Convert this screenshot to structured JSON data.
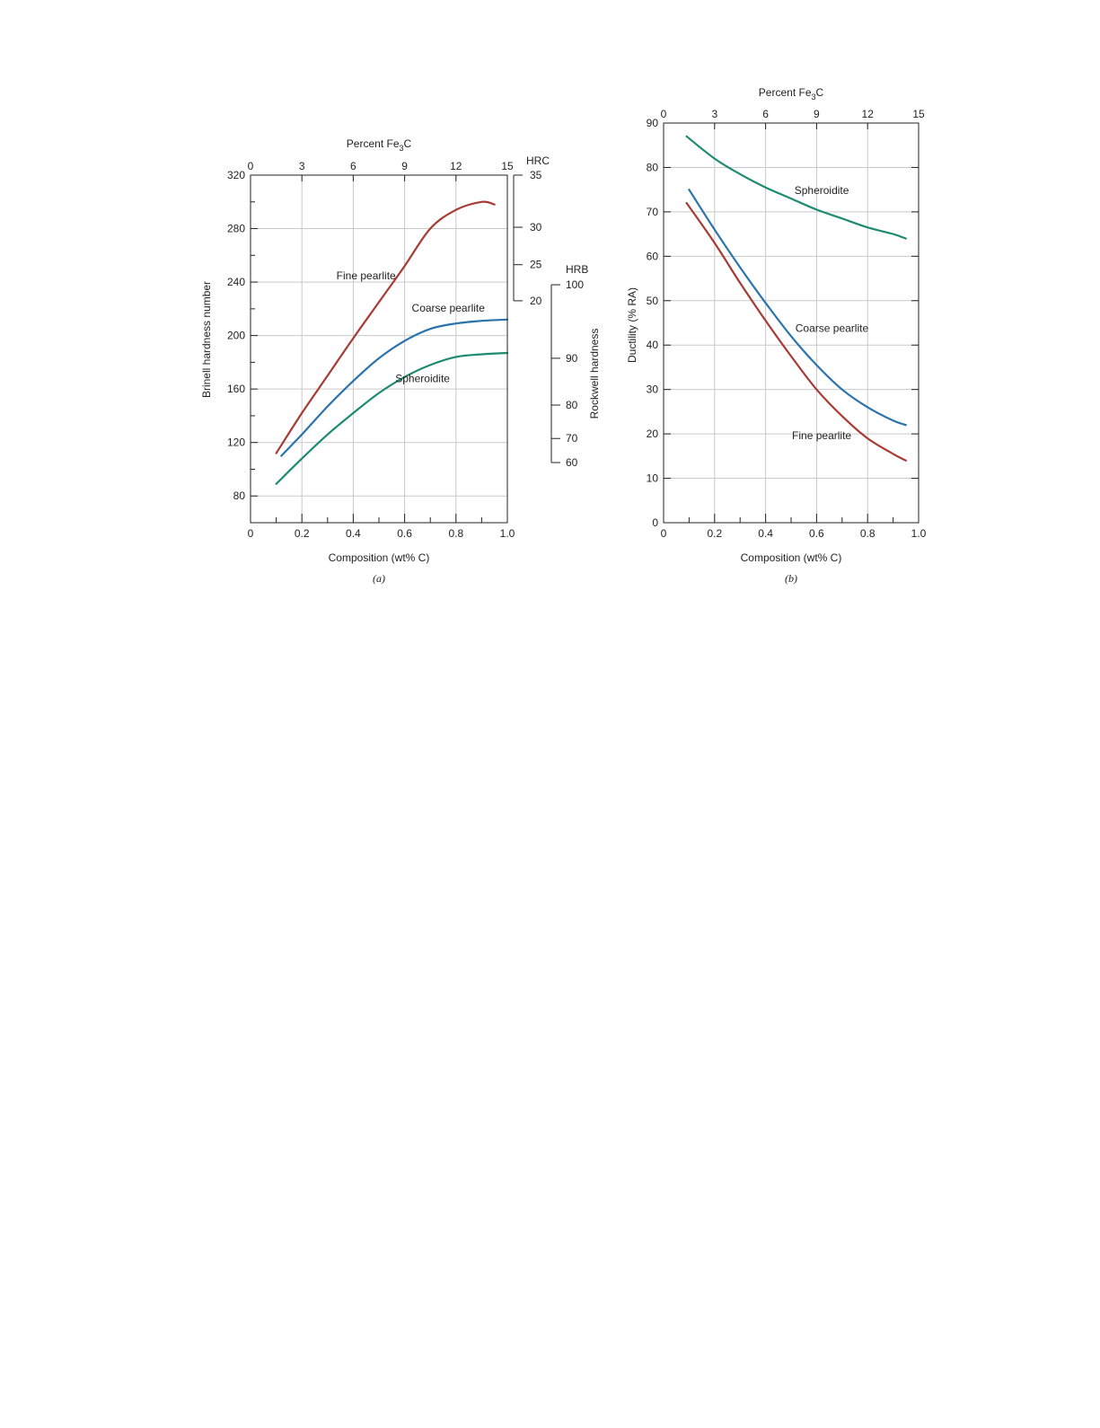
{
  "chart_data": [
    {
      "id": "a",
      "type": "line",
      "caption": "(a)",
      "xlabel": "Composition (wt% C)",
      "ylabel": "Brinell hardness number",
      "top_axis_label": "Percent Fe3C",
      "top_axis_label_parts": {
        "base": "Percent Fe",
        "sub": "3",
        "tail": "C"
      },
      "xlim": [
        0,
        1.0
      ],
      "ylim": [
        60,
        320
      ],
      "x_ticks": [
        "0",
        "0.2",
        "0.4",
        "0.6",
        "0.8",
        "1.0"
      ],
      "y_ticks": [
        "80",
        "120",
        "160",
        "200",
        "240",
        "280",
        "320"
      ],
      "top_ticks": [
        "0",
        "3",
        "6",
        "9",
        "12",
        "15"
      ],
      "hrc_scale": {
        "label": "HRC",
        "ticks": [
          {
            "label": "35",
            "brinell": 320
          },
          {
            "label": "30",
            "brinell": 281
          },
          {
            "label": "25",
            "brinell": 253
          },
          {
            "label": "20",
            "brinell": 226
          }
        ]
      },
      "hrb_scale": {
        "label": "HRB",
        "ticks": [
          {
            "label": "100",
            "brinell": 238
          },
          {
            "label": "90",
            "brinell": 183
          },
          {
            "label": "80",
            "brinell": 148
          },
          {
            "label": "70",
            "brinell": 123
          },
          {
            "label": "60",
            "brinell": 105
          }
        ]
      },
      "right_axis_label": "Rockwell hardness",
      "series": [
        {
          "name": "Fine pearlite",
          "color": "#a83a34",
          "label_pos": [
            0.45,
            242
          ],
          "x": [
            0.1,
            0.2,
            0.3,
            0.4,
            0.5,
            0.6,
            0.7,
            0.8,
            0.9,
            0.95
          ],
          "y": [
            112,
            142,
            170,
            198,
            225,
            252,
            280,
            294,
            300,
            298
          ]
        },
        {
          "name": "Coarse pearlite",
          "color": "#2b73ad",
          "label_pos": [
            0.77,
            218
          ],
          "x": [
            0.12,
            0.2,
            0.3,
            0.4,
            0.5,
            0.6,
            0.7,
            0.8,
            0.9,
            1.0
          ],
          "y": [
            110,
            126,
            147,
            166,
            183,
            196,
            205,
            209,
            211,
            212
          ]
        },
        {
          "name": "Spheroidite",
          "color": "#1d8a72",
          "label_pos": [
            0.67,
            165
          ],
          "x": [
            0.1,
            0.2,
            0.3,
            0.4,
            0.5,
            0.6,
            0.7,
            0.8,
            0.9,
            1.0
          ],
          "y": [
            89,
            108,
            126,
            142,
            157,
            169,
            178,
            184,
            186,
            187
          ]
        }
      ]
    },
    {
      "id": "b",
      "type": "line",
      "caption": "(b)",
      "xlabel": "Composition (wt% C)",
      "ylabel": "Ductility (% RA)",
      "top_axis_label": "Percent Fe3C",
      "top_axis_label_parts": {
        "base": "Percent Fe",
        "sub": "3",
        "tail": "C"
      },
      "xlim": [
        0,
        1.0
      ],
      "ylim": [
        0,
        90
      ],
      "x_ticks": [
        "0",
        "0.2",
        "0.4",
        "0.6",
        "0.8",
        "1.0"
      ],
      "y_ticks": [
        "0",
        "10",
        "20",
        "30",
        "40",
        "50",
        "60",
        "70",
        "80",
        "90"
      ],
      "top_ticks": [
        "0",
        "3",
        "6",
        "9",
        "12",
        "15"
      ],
      "series": [
        {
          "name": "Spheroidite",
          "color": "#1d8a72",
          "label_pos": [
            0.62,
            74
          ],
          "x": [
            0.09,
            0.2,
            0.3,
            0.4,
            0.5,
            0.6,
            0.7,
            0.8,
            0.9,
            0.95
          ],
          "y": [
            87,
            82,
            78.5,
            75.5,
            73,
            70.5,
            68.5,
            66.5,
            65,
            64
          ]
        },
        {
          "name": "Coarse pearlite",
          "color": "#2b73ad",
          "label_pos": [
            0.66,
            43
          ],
          "x": [
            0.1,
            0.2,
            0.3,
            0.4,
            0.5,
            0.6,
            0.7,
            0.8,
            0.9,
            0.95
          ],
          "y": [
            75,
            66,
            57.5,
            49.5,
            42,
            35.5,
            30,
            26,
            23,
            22
          ]
        },
        {
          "name": "Fine pearlite",
          "color": "#a83a34",
          "label_pos": [
            0.62,
            18.8
          ],
          "x": [
            0.09,
            0.2,
            0.3,
            0.4,
            0.5,
            0.6,
            0.7,
            0.8,
            0.9,
            0.95
          ],
          "y": [
            72,
            63,
            54,
            45.5,
            37.5,
            30,
            24,
            19,
            15.5,
            14
          ]
        }
      ]
    }
  ]
}
